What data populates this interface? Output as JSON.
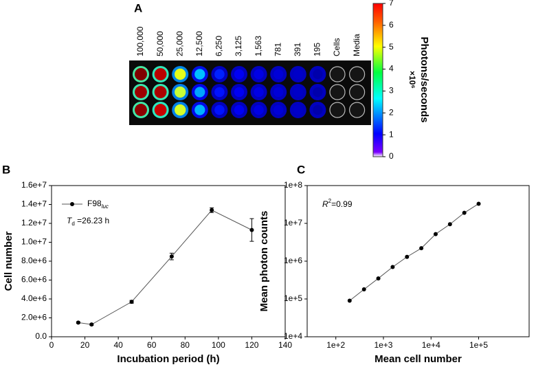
{
  "chart_data": [
    {
      "type": "heatmap",
      "panel": "A",
      "categories": [
        "100,000",
        "50,000",
        "25,000",
        "12,500",
        "6,250",
        "3,125",
        "1,563",
        "781",
        "391",
        "195",
        "Cells",
        "Media"
      ],
      "values": [
        [
          7,
          6.6,
          4.2,
          2.2,
          1.1,
          0.8,
          0.7,
          0.6,
          0.5,
          0.3,
          0,
          0
        ],
        [
          6.8,
          6.7,
          4,
          2,
          1,
          0.8,
          0.7,
          0.6,
          0.5,
          0.3,
          0,
          0
        ],
        [
          6.9,
          6.5,
          4.1,
          2.1,
          1,
          0.8,
          0.7,
          0.6,
          0.5,
          0.3,
          0,
          0
        ]
      ],
      "zlim": [
        0,
        7
      ],
      "zticks": [
        0,
        1,
        2,
        3,
        4,
        5,
        6,
        7
      ],
      "colorbar_label": "Photons/seconds",
      "colorbar_unit": "×10⁶"
    },
    {
      "type": "line",
      "panel": "B",
      "x": [
        16,
        24,
        48,
        72,
        96,
        120
      ],
      "series": [
        {
          "name": "F98",
          "name_subscript": "luc",
          "color": "#000000",
          "values": [
            1500000,
            1300000,
            3700000,
            8500000,
            13400000,
            11300000
          ],
          "errors": [
            80000,
            80000,
            150000,
            350000,
            250000,
            1200000
          ]
        }
      ],
      "annotation": [
        "T",
        "d",
        " =26.23 h"
      ],
      "xlabel": "Incubation period (h)",
      "ylabel": "Cell number",
      "xlim": [
        0,
        140
      ],
      "xticks": [
        0,
        20,
        40,
        60,
        80,
        100,
        120,
        140
      ],
      "ylim": [
        0,
        16000000
      ],
      "yticks": [
        {
          "value": 0,
          "label": "0.0"
        },
        {
          "value": 2000000,
          "label": "2.0e+6"
        },
        {
          "value": 4000000,
          "label": "4.0e+6"
        },
        {
          "value": 6000000,
          "label": "6.0e+6"
        },
        {
          "value": 8000000,
          "label": "8.0e+6"
        },
        {
          "value": 10000000,
          "label": "1.0e+7"
        },
        {
          "value": 12000000,
          "label": "1.2e+7"
        },
        {
          "value": 14000000,
          "label": "1.4e+7"
        },
        {
          "value": 16000000,
          "label": "1.6e+7"
        }
      ]
    },
    {
      "type": "scatter",
      "panel": "C",
      "log_x": true,
      "log_y": true,
      "x": [
        195,
        391,
        781,
        1563,
        3125,
        6250,
        12500,
        25000,
        50000,
        100000
      ],
      "series": [
        {
          "color": "#000000",
          "values": [
            90000,
            180000,
            350000,
            700000,
            1300000,
            2200000,
            5200000,
            9500000,
            19000000,
            33000000
          ]
        }
      ],
      "annotation": [
        "R",
        "2",
        "=0.99"
      ],
      "xlabel": "Mean cell number",
      "ylabel": "Mean photon counts",
      "xlim": [
        25,
        1150000
      ],
      "xticks": [
        {
          "value": 100,
          "label": "1e+2"
        },
        {
          "value": 1000,
          "label": "1e+3"
        },
        {
          "value": 10000,
          "label": "1e+4"
        },
        {
          "value": 100000,
          "label": "1e+5"
        }
      ],
      "ylim": [
        10000,
        100000000
      ],
      "yticks": [
        {
          "value": 10000,
          "label": "1e+4"
        },
        {
          "value": 100000,
          "label": "1e+5"
        },
        {
          "value": 1000000,
          "label": "1e+6"
        },
        {
          "value": 10000000,
          "label": "1e+7"
        },
        {
          "value": 100000000,
          "label": "1e+8"
        }
      ]
    }
  ]
}
